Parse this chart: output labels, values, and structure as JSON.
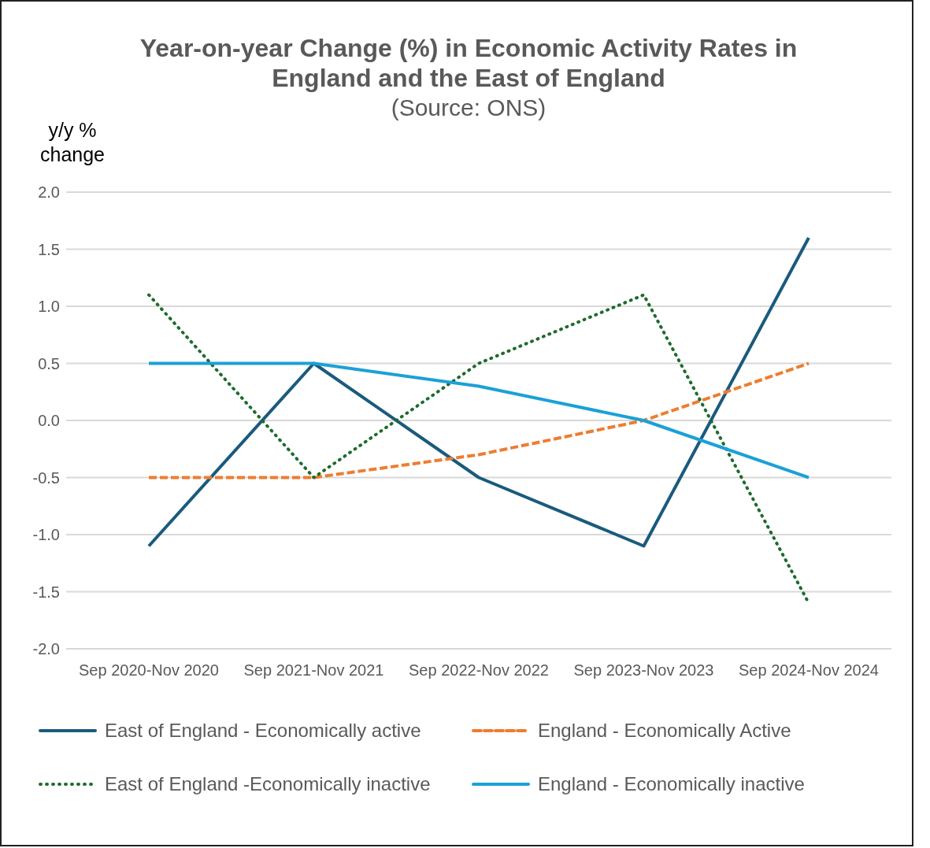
{
  "chart_data": {
    "type": "line",
    "title": "Year-on-year Change (%) in Economic Activity Rates in England and the East of England",
    "subtitle": "(Source: ONS)",
    "ylabel": "y/y % change",
    "categories": [
      "Sep 2020-Nov 2020",
      "Sep 2021-Nov 2021",
      "Sep 2022-Nov 2022",
      "Sep 2023-Nov 2023",
      "Sep 2024-Nov 2024"
    ],
    "series": [
      {
        "name": "East of England - Economically active",
        "color": "#1a5a7e",
        "line_style": "solid",
        "values": [
          -1.1,
          0.5,
          -0.5,
          -1.1,
          1.6
        ]
      },
      {
        "name": "England - Economically Active",
        "color": "#ed7d31",
        "line_style": "dashed",
        "values": [
          -0.5,
          -0.5,
          -0.3,
          0.0,
          0.5
        ]
      },
      {
        "name": "East of England -Economically inactive",
        "color": "#1e6b2e",
        "line_style": "dotted",
        "values": [
          1.1,
          -0.5,
          0.5,
          1.1,
          -1.6
        ]
      },
      {
        "name": "England - Economically inactive",
        "color": "#1ba1d6",
        "line_style": "solid",
        "values": [
          0.5,
          0.5,
          0.3,
          0.0,
          -0.5
        ]
      }
    ],
    "ylim": [
      -2,
      2
    ],
    "yticks": [
      {
        "value": -2,
        "label": "-2.0"
      },
      {
        "value": -1.5,
        "label": "-1.5"
      },
      {
        "value": -1,
        "label": "-1.0"
      },
      {
        "value": -0.5,
        "label": "-0.5"
      },
      {
        "value": 0,
        "label": "0.0"
      },
      {
        "value": 0.5,
        "label": "0.5"
      },
      {
        "value": 1,
        "label": "1.0"
      },
      {
        "value": 1.5,
        "label": "1.5"
      },
      {
        "value": 2,
        "label": "2.0"
      }
    ],
    "grid": "y",
    "legend": "bottom",
    "marker": "none"
  }
}
